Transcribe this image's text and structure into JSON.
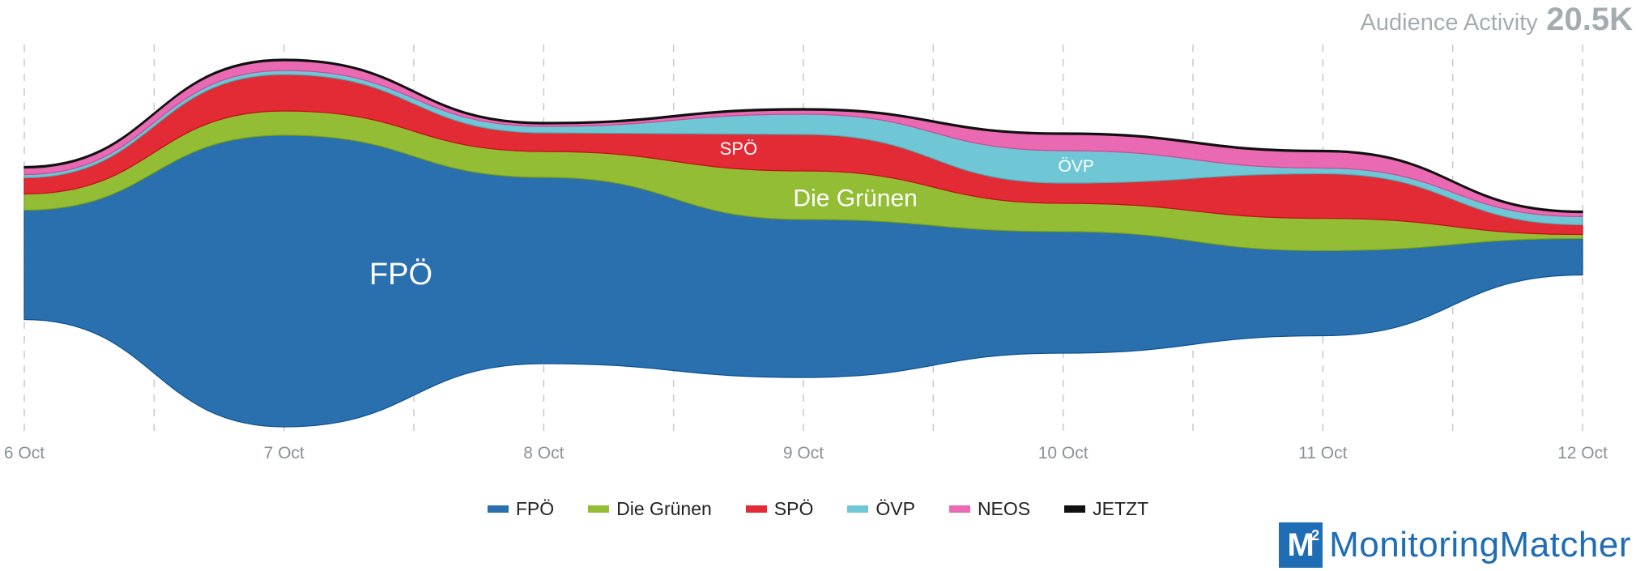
{
  "header": {
    "metric_label": "Audience Activity",
    "metric_value": "20.5K"
  },
  "brand": {
    "logo_text": "M",
    "logo_sup": "2",
    "name": "MonitoringMatcher"
  },
  "chart_data": {
    "type": "area",
    "subtype": "streamgraph",
    "title": "",
    "xlabel": "",
    "ylabel": "",
    "x": [
      "6 Oct",
      "7 Oct",
      "8 Oct",
      "9 Oct",
      "10 Oct",
      "11 Oct",
      "12 Oct"
    ],
    "x_ticks": [
      "6 Oct",
      "7 Oct",
      "8 Oct",
      "9 Oct",
      "10 Oct",
      "11 Oct",
      "12 Oct"
    ],
    "grid": "vertical dashed at every half day",
    "legend_position": "bottom-center",
    "series": [
      {
        "name": "FPÖ",
        "color": "#2a6fae",
        "values": [
          1.35,
          3.6,
          2.3,
          1.95,
          1.5,
          1.05,
          0.45
        ],
        "label": "FPÖ"
      },
      {
        "name": "Die Grünen",
        "color": "#93bd34",
        "values": [
          0.2,
          0.3,
          0.32,
          0.6,
          0.35,
          0.4,
          0.05
        ],
        "label": "Die Grünen"
      },
      {
        "name": "SPÖ",
        "color": "#e32b36",
        "values": [
          0.2,
          0.45,
          0.23,
          0.45,
          0.25,
          0.55,
          0.12
        ],
        "label": "SPÖ"
      },
      {
        "name": "ÖVP",
        "color": "#6fc7d6",
        "values": [
          0.04,
          0.05,
          0.08,
          0.25,
          0.4,
          0.07,
          0.1
        ],
        "label": "ÖVP"
      },
      {
        "name": "NEOS",
        "color": "#e969b3",
        "values": [
          0.08,
          0.12,
          0.03,
          0.05,
          0.2,
          0.2,
          0.05
        ],
        "label": ""
      },
      {
        "name": "JETZT",
        "color": "#111111",
        "values": [
          0.02,
          0.02,
          0.02,
          0.02,
          0.02,
          0.02,
          0.02
        ],
        "label": ""
      }
    ]
  }
}
